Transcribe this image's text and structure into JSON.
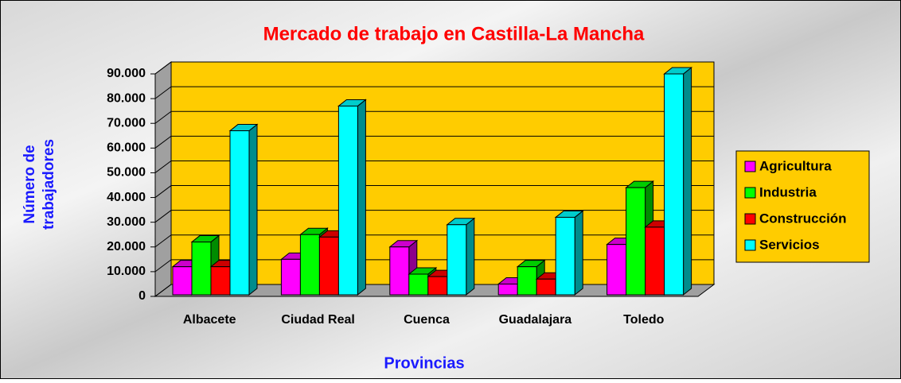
{
  "chart_data": {
    "type": "bar3d",
    "title": "Mercado de trabajo en Castilla-La Mancha",
    "xlabel": "Provincias",
    "ylabel": [
      "Número de",
      "trabajadores"
    ],
    "categories": [
      "Albacete",
      "Ciudad Real",
      "Cuenca",
      "Guadalajara",
      "Toledo"
    ],
    "series": [
      {
        "name": "Agricultura",
        "color": "#ff00ff",
        "values": [
          12000,
          15000,
          20000,
          5000,
          21000
        ]
      },
      {
        "name": "Industria",
        "color": "#00ff00",
        "values": [
          22000,
          25000,
          9000,
          12000,
          44000
        ]
      },
      {
        "name": "Construcción",
        "color": "#ff0000",
        "values": [
          12000,
          24000,
          8000,
          7000,
          28000
        ]
      },
      {
        "name": "Servicios",
        "color": "#00ffff",
        "values": [
          67000,
          77000,
          29000,
          32000,
          90000
        ]
      }
    ],
    "ylim": [
      0,
      90000
    ],
    "yticks": [
      0,
      {
        "value": 10000,
        "label": "10.000"
      },
      {
        "value": 20000,
        "label": "20.000"
      },
      {
        "value": 30000,
        "label": "30.000"
      },
      {
        "value": 40000,
        "label": "40.000"
      },
      {
        "value": 50000,
        "label": "50.000"
      },
      {
        "value": 60000,
        "label": "60.000"
      },
      {
        "value": 70000,
        "label": "70.000"
      },
      {
        "value": 80000,
        "label": "80.000"
      },
      {
        "value": 90000,
        "label": "90.000"
      }
    ],
    "grid": true,
    "legend": "right",
    "wall_color": "#ffcc00"
  }
}
